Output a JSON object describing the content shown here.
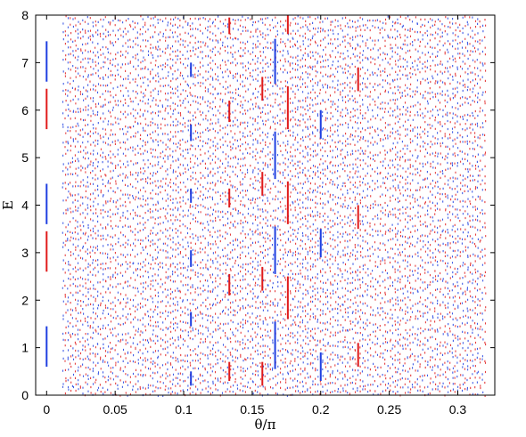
{
  "chart_data": {
    "type": "scatter",
    "title": "",
    "xlabel": "θ/π",
    "ylabel": "E",
    "xlim": [
      -0.008,
      0.327
    ],
    "ylim": [
      0,
      8
    ],
    "xticks": [
      0,
      0.05,
      0.1,
      0.15,
      0.2,
      0.25,
      0.3
    ],
    "xtick_labels": [
      "0",
      "0.05",
      "0.1",
      "0.15",
      "0.2",
      "0.25",
      "0.3"
    ],
    "yticks": [
      0,
      1,
      2,
      3,
      4,
      5,
      6,
      7,
      8
    ],
    "ytick_labels": [
      "0",
      "1",
      "2",
      "3",
      "4",
      "5",
      "6",
      "7",
      "8"
    ],
    "grid": false,
    "legend": "none",
    "series": [
      {
        "color": "#1f3fe0",
        "segments": [
          {
            "x": 0,
            "y": [
              0.6,
              1.45
            ]
          },
          {
            "x": 0,
            "y": [
              3.6,
              4.45
            ]
          },
          {
            "x": 0,
            "y": [
              6.6,
              7.45
            ]
          },
          {
            "x": 0.1053,
            "y": [
              0.2,
              0.5
            ]
          },
          {
            "x": 0.1053,
            "y": [
              1.45,
              1.75
            ]
          },
          {
            "x": 0.1053,
            "y": [
              2.7,
              3.05
            ]
          },
          {
            "x": 0.1053,
            "y": [
              4.05,
              4.35
            ]
          },
          {
            "x": 0.1053,
            "y": [
              5.35,
              5.7
            ]
          },
          {
            "x": 0.1053,
            "y": [
              6.7,
              7.0
            ]
          },
          {
            "x": 0.1667,
            "y": [
              0.55,
              1.55
            ]
          },
          {
            "x": 0.1667,
            "y": [
              2.55,
              3.55
            ]
          },
          {
            "x": 0.1667,
            "y": [
              4.55,
              5.55
            ]
          },
          {
            "x": 0.1667,
            "y": [
              6.55,
              7.5
            ]
          },
          {
            "x": 0.2,
            "y": [
              0.3,
              0.9
            ]
          },
          {
            "x": 0.2,
            "y": [
              2.9,
              3.5
            ]
          },
          {
            "x": 0.2,
            "y": [
              5.4,
              6.0
            ]
          }
        ]
      },
      {
        "color": "#e01b1b",
        "segments": [
          {
            "x": 0,
            "y": [
              2.6,
              3.45
            ]
          },
          {
            "x": 0,
            "y": [
              5.6,
              6.45
            ]
          },
          {
            "x": 0.1333,
            "y": [
              0.3,
              0.7
            ]
          },
          {
            "x": 0.1333,
            "y": [
              2.1,
              2.55
            ]
          },
          {
            "x": 0.1333,
            "y": [
              3.95,
              4.35
            ]
          },
          {
            "x": 0.1333,
            "y": [
              5.75,
              6.2
            ]
          },
          {
            "x": 0.1333,
            "y": [
              7.6,
              7.95
            ]
          },
          {
            "x": 0.1574,
            "y": [
              0.2,
              0.7
            ]
          },
          {
            "x": 0.1574,
            "y": [
              2.2,
              2.7
            ]
          },
          {
            "x": 0.1574,
            "y": [
              4.2,
              4.7
            ]
          },
          {
            "x": 0.1574,
            "y": [
              6.2,
              6.7
            ]
          },
          {
            "x": 0.176,
            "y": [
              1.6,
              2.5
            ]
          },
          {
            "x": 0.176,
            "y": [
              3.6,
              4.5
            ]
          },
          {
            "x": 0.176,
            "y": [
              5.6,
              6.5
            ]
          },
          {
            "x": 0.176,
            "y": [
              7.6,
              8.0
            ]
          },
          {
            "x": 0.2273,
            "y": [
              0.6,
              1.1
            ]
          },
          {
            "x": 0.2273,
            "y": [
              3.5,
              4.0
            ]
          },
          {
            "x": 0.2273,
            "y": [
              6.4,
              6.9
            ]
          }
        ]
      }
    ]
  }
}
